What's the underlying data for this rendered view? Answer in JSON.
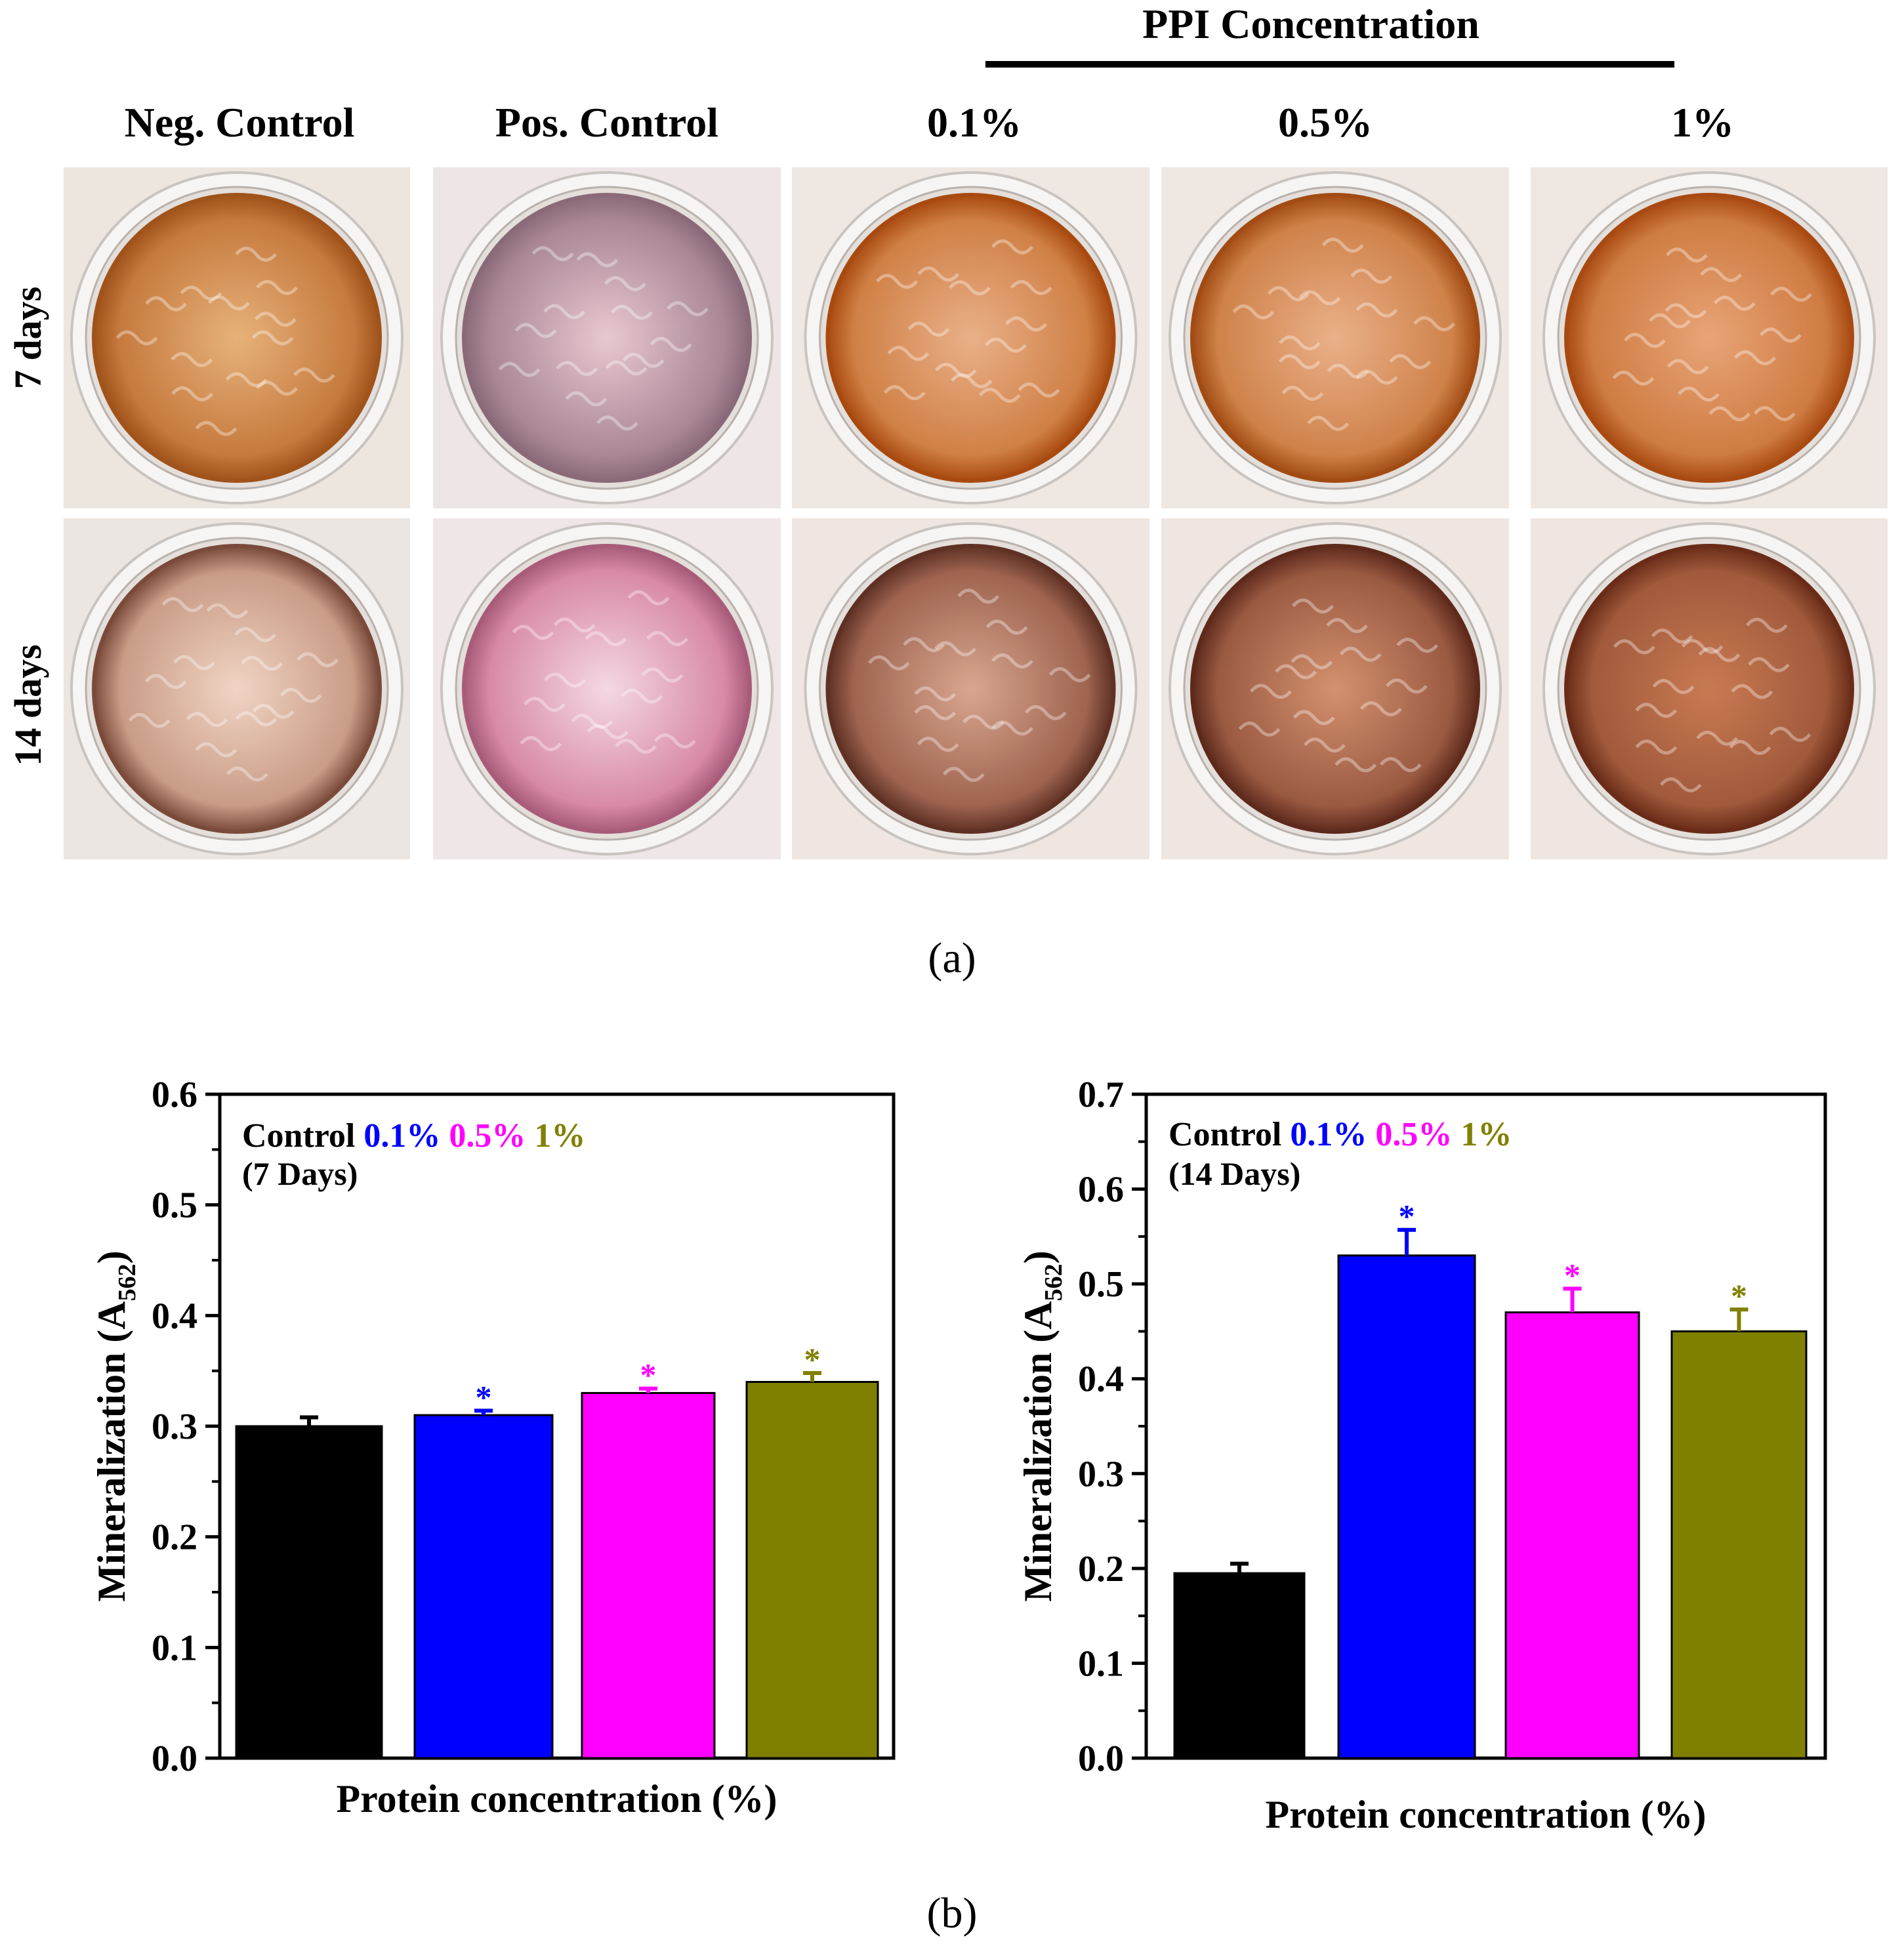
{
  "panel_a": {
    "group_header": "PPI Concentration",
    "columns": [
      "Neg. Control",
      "Pos. Control",
      "0.1%",
      "0.5%",
      "1%"
    ],
    "rows": [
      {
        "label": "7 days",
        "wells": [
          {
            "rim": "#a0531a",
            "center": "#e6b27a",
            "edge": "#c67a3e",
            "bg": "#ece6df"
          },
          {
            "rim": "#8a6a78",
            "center": "#e8c8d0",
            "edge": "#a98797",
            "bg": "#eee6e6"
          },
          {
            "rim": "#a84a10",
            "center": "#e9b089",
            "edge": "#d08045",
            "bg": "#efe8e2"
          },
          {
            "rim": "#a24c14",
            "center": "#eab08a",
            "edge": "#cf8249",
            "bg": "#efe8e2"
          },
          {
            "rim": "#a84a12",
            "center": "#e8a477",
            "edge": "#cf7c42",
            "bg": "#efe8e2"
          }
        ]
      },
      {
        "label": "14 days",
        "wells": [
          {
            "rim": "#7a4a3a",
            "center": "#f0d4c4",
            "edge": "#c99c86",
            "bg": "#ebe6e2"
          },
          {
            "rim": "#a85c7a",
            "center": "#f4d8e4",
            "edge": "#d88aa8",
            "bg": "#efe6e8"
          },
          {
            "rim": "#5f3124",
            "center": "#d8a690",
            "edge": "#9e6450",
            "bg": "#efe6e2"
          },
          {
            "rim": "#5e2a1c",
            "center": "#d4916e",
            "edge": "#9a5a42",
            "bg": "#efe6e2"
          },
          {
            "rim": "#6a2c18",
            "center": "#c97a52",
            "edge": "#a05a3c",
            "bg": "#efe6e2"
          }
        ]
      }
    ],
    "caption": "(a)"
  },
  "panel_b_caption": "(b)",
  "chart_data": [
    {
      "type": "bar",
      "title": "",
      "legend_labels": [
        "Control",
        "0.1%",
        "0.5%",
        "1%"
      ],
      "annotation": "(7 Days)",
      "categories": [
        "Control",
        "0.1%",
        "0.5%",
        "1%"
      ],
      "values": [
        0.3,
        0.31,
        0.33,
        0.34
      ],
      "errors": [
        0.008,
        0.004,
        0.004,
        0.008
      ],
      "significance": [
        "",
        "*",
        "*",
        "*"
      ],
      "colors": [
        "#000000",
        "#0000ff",
        "#ff00ff",
        "#808000"
      ],
      "xlabel": "Protein concentration (%)",
      "ylabel_main": "Mineralization (A",
      "ylabel_sub": "562",
      "ylabel_end": ")",
      "ylim": [
        0,
        0.6
      ],
      "yticks": [
        0.0,
        0.1,
        0.2,
        0.3,
        0.4,
        0.5,
        0.6
      ],
      "ytick_labels": [
        "0.0",
        "0.1",
        "0.2",
        "0.3",
        "0.4",
        "0.5",
        "0.6"
      ]
    },
    {
      "type": "bar",
      "title": "",
      "legend_labels": [
        "Control",
        "0.1%",
        "0.5%",
        "1%"
      ],
      "annotation": "(14 Days)",
      "categories": [
        "Control",
        "0.1%",
        "0.5%",
        "1%"
      ],
      "values": [
        0.195,
        0.53,
        0.47,
        0.45
      ],
      "errors": [
        0.01,
        0.027,
        0.025,
        0.023
      ],
      "significance": [
        "",
        "*",
        "*",
        "*"
      ],
      "colors": [
        "#000000",
        "#0000ff",
        "#ff00ff",
        "#808000"
      ],
      "xlabel": "Protein concentration (%)",
      "ylabel_main": "Mineralization (A",
      "ylabel_sub": "562",
      "ylabel_end": ")",
      "ylim": [
        0,
        0.7
      ],
      "yticks": [
        0.0,
        0.1,
        0.2,
        0.3,
        0.4,
        0.5,
        0.6,
        0.7
      ],
      "ytick_labels": [
        "0.0",
        "0.1",
        "0.2",
        "0.3",
        "0.4",
        "0.5",
        "0.6",
        "0.7"
      ]
    }
  ]
}
